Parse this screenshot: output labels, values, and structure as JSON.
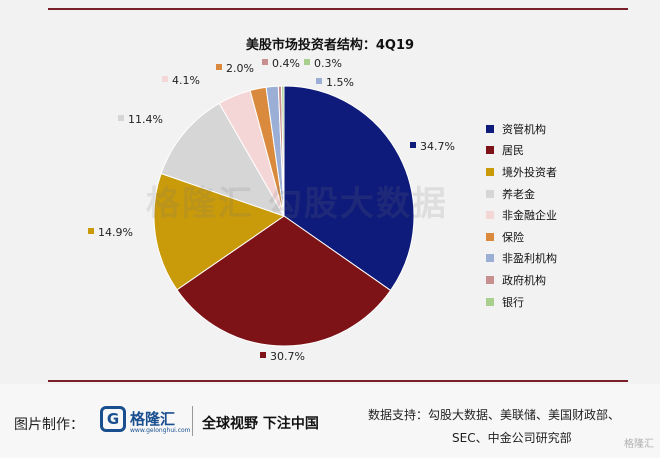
{
  "chart_data": {
    "type": "pie",
    "title": "美股市场投资者结构：4Q19",
    "categories": [
      "资管机构",
      "居民",
      "境外投资者",
      "养老金",
      "非金融企业",
      "保险",
      "非盈利机构",
      "政府机构",
      "银行"
    ],
    "values": [
      34.7,
      30.7,
      14.9,
      11.4,
      4.1,
      2.0,
      1.5,
      0.4,
      0.3
    ],
    "labels": [
      "34.7%",
      "30.7%",
      "14.9%",
      "11.4%",
      "4.1%",
      "2.0%",
      "1.5%",
      "0.4%",
      "0.3%"
    ],
    "colors": [
      "#0f1b7a",
      "#7d1316",
      "#c99a0a",
      "#d6d6d6",
      "#f5d6d6",
      "#d98a3d",
      "#9aaed6",
      "#c98f8f",
      "#a9cf8f"
    ],
    "legend_position": "right",
    "start_angle": "12 o'clock",
    "direction": "clockwise"
  },
  "watermark": {
    "logo": "格隆汇",
    "text": "勾股大数据"
  },
  "footer": {
    "label": "图片制作：",
    "logo_mark": "G",
    "logo_name": "格隆汇",
    "logo_url": "www.gelonghui.com",
    "slogan": "全球视野 下注中国",
    "source_line1": "数据支持：勾股大数据、美联储、美国财政部、",
    "source_line2": "SEC、中金公司研究部",
    "corner_mark": "格隆汇"
  }
}
